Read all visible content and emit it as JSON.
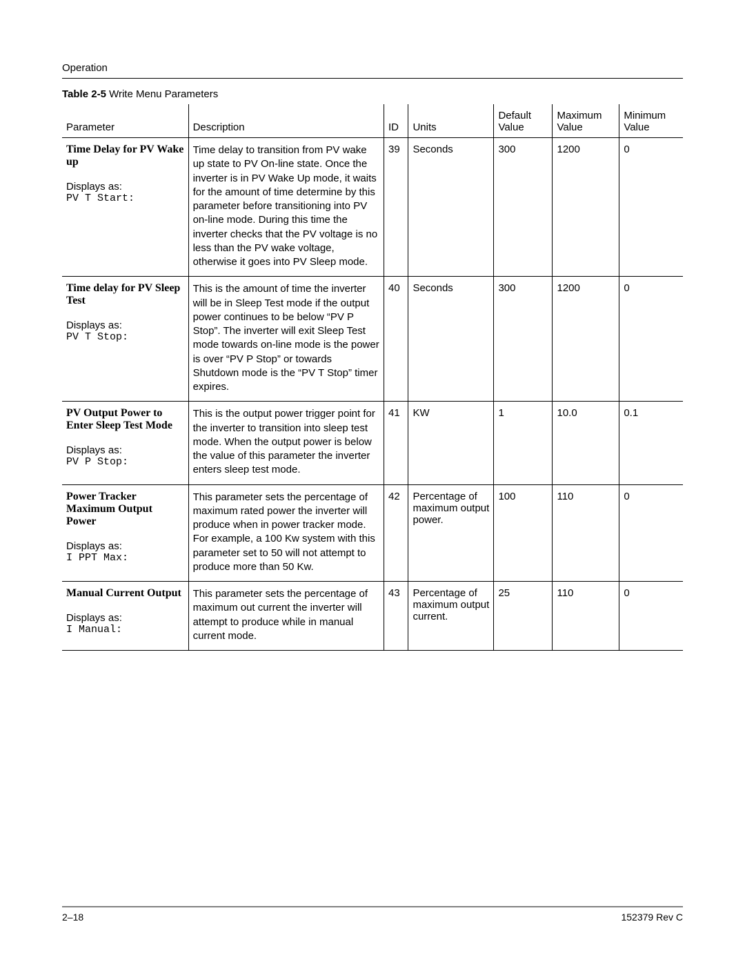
{
  "header": {
    "section": "Operation"
  },
  "table": {
    "title_prefix": "Table 2-5",
    "title_rest": "Write Menu Parameters",
    "columns": {
      "parameter": "Parameter",
      "description": "Description",
      "id": "ID",
      "units": "Units",
      "default": "Default Value",
      "maximum": "Maximum Value",
      "minimum": "Minimum Value"
    },
    "rows": [
      {
        "param_name": "Time Delay for PV Wake up",
        "displays_label": "Displays as:",
        "displays_code": "PV T Start:",
        "description": "Time delay to transition from PV wake up state to PV On-line state. Once the inverter is in PV Wake Up mode, it waits for the amount of time determine by this parameter before transitioning into PV on-line mode. During this time the inverter checks that the PV voltage is no less than the PV wake voltage, otherwise it goes into PV Sleep mode.",
        "id": "39",
        "units": "Seconds",
        "default": "300",
        "maximum": "1200",
        "minimum": "0"
      },
      {
        "param_name": "Time delay for PV Sleep Test",
        "displays_label": "Displays as:",
        "displays_code": "PV T Stop:",
        "description": "This is the amount of time the inverter will be in Sleep Test mode if the output power continues to be below “PV P Stop”. The inverter will exit Sleep Test mode towards on-line mode is the power is over “PV P Stop” or towards Shutdown mode is the “PV T Stop” timer expires.",
        "id": "40",
        "units": "Seconds",
        "default": "300",
        "maximum": "1200",
        "minimum": "0"
      },
      {
        "param_name": "PV Output Power to Enter Sleep Test Mode",
        "displays_label": "Displays as:",
        "displays_code": "PV P Stop:",
        "description": "This is the output power trigger point for the inverter to transition into sleep test mode. When the output power is below the value of this parameter the inverter enters sleep test mode.",
        "id": "41",
        "units": "KW",
        "default": "1",
        "maximum": "10.0",
        "minimum": "0.1"
      },
      {
        "param_name": "Power Tracker Maximum Output Power",
        "displays_label": "Displays as:",
        "displays_code": "I PPT Max:",
        "description": "This parameter sets the percentage of maximum rated power the inverter will produce when in power tracker mode. For example, a 100 Kw system with this parameter set to 50 will not attempt to produce more than 50 Kw.",
        "id": "42",
        "units": "Percentage of maximum output power.",
        "default": "100",
        "maximum": "110",
        "minimum": "0"
      },
      {
        "param_name": "Manual Current Output",
        "displays_label": "Displays as:",
        "displays_code": "I Manual:",
        "description": "This parameter sets the percentage of maximum out current the inverter will attempt to produce while in manual current mode.",
        "id": "43",
        "units": "Percentage of maximum output current.",
        "default": "25",
        "maximum": "110",
        "minimum": "0"
      }
    ]
  },
  "footer": {
    "left": "2–18",
    "right": "152379 Rev C"
  }
}
